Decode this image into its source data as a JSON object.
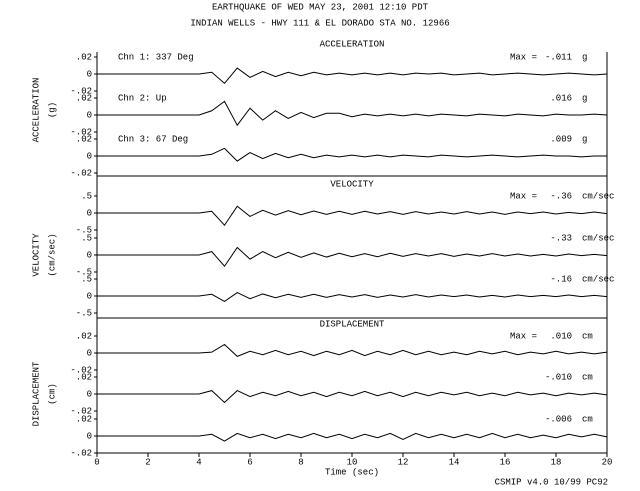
{
  "chart_data": {
    "type": "line",
    "title": "EARTHQUAKE OF WED MAY 23, 2001  12:10 PDT",
    "subtitle": "INDIAN WELLS - HWY 111 & EL DORADO    STA NO. 12966",
    "footer": "CSMIP v4.0 10/99  PC92",
    "xlabel": "Time (sec)",
    "xlim": [
      0,
      20
    ],
    "xticks": [
      0,
      2,
      4,
      6,
      8,
      10,
      12,
      14,
      16,
      18,
      20
    ],
    "max_prefix": "Max =",
    "color": "#000000",
    "x": [
      0,
      0.5,
      1,
      1.5,
      2,
      2.5,
      3,
      3.5,
      4,
      4.5,
      5,
      5.5,
      6,
      6.5,
      7,
      7.5,
      8,
      8.5,
      9,
      9.5,
      10,
      10.5,
      11,
      11.5,
      12,
      12.5,
      13,
      13.5,
      14,
      14.5,
      15,
      15.5,
      16,
      16.5,
      17,
      17.5,
      18,
      18.5,
      19,
      19.5,
      20
    ],
    "panels": [
      {
        "title": "ACCELERATION",
        "ylabel": "ACCELERATION",
        "yunit": "(g)",
        "ylim": [
          -0.02,
          0.02
        ],
        "yticks": [
          {
            "value": 0.02,
            "label": ".02"
          },
          0,
          {
            "value": -0.02,
            "label": "-.02"
          }
        ],
        "series": [
          {
            "name": "Chn 1: 337 Deg",
            "max": -0.011,
            "max_label": "-.011",
            "unit": "g",
            "values": [
              0,
              0,
              0,
              0,
              0,
              0,
              0,
              0,
              0,
              0.002,
              -0.011,
              0.007,
              -0.004,
              0.003,
              -0.003,
              0.002,
              -0.002,
              0.002,
              -0.001,
              0.001,
              -0.001,
              0.001,
              -0.001,
              0.001,
              -0.001,
              0.001,
              0,
              0.001,
              -0.001,
              0,
              0.001,
              -0.001,
              0,
              0.001,
              0,
              -0.001,
              0,
              0.001,
              0,
              -0.001,
              0
            ]
          },
          {
            "name": "Chn 2: Up",
            "max": 0.016,
            "max_label": ".016",
            "unit": "g",
            "values": [
              0,
              0,
              0,
              0,
              0,
              0,
              0,
              0,
              0,
              0.005,
              0.016,
              -0.012,
              0.008,
              -0.006,
              0.005,
              -0.004,
              0.003,
              -0.003,
              0.002,
              0.002,
              -0.002,
              0.001,
              -0.001,
              0.001,
              -0.001,
              0.001,
              -0.001,
              0.001,
              0,
              -0.001,
              0.001,
              0,
              -0.001,
              0.001,
              0,
              -0.001,
              0.001,
              0,
              0,
              0.001,
              0
            ]
          },
          {
            "name": "Chn 3: 67 Deg",
            "max": 0.009,
            "max_label": ".009",
            "unit": "g",
            "values": [
              0,
              0,
              0,
              0,
              0,
              0,
              0,
              0,
              0,
              0.002,
              0.009,
              -0.006,
              0.004,
              -0.003,
              0.003,
              -0.002,
              0.002,
              -0.002,
              0.001,
              -0.001,
              0.001,
              -0.001,
              0.001,
              -0.001,
              0.001,
              0,
              -0.001,
              0.001,
              0,
              -0.001,
              0,
              0.001,
              0,
              -0.001,
              0,
              0.001,
              0,
              0,
              -0.001,
              0,
              0
            ]
          }
        ]
      },
      {
        "title": "VELOCITY",
        "ylabel": "VELOCITY",
        "yunit": "(cm/sec)",
        "ylim": [
          -0.5,
          0.5
        ],
        "yticks": [
          {
            "value": 0.5,
            "label": ".5"
          },
          0,
          {
            "value": -0.5,
            "label": "-.5"
          }
        ],
        "series": [
          {
            "max": -0.36,
            "max_label": "-.36",
            "unit": "cm/sec",
            "values": [
              0,
              0,
              0,
              0,
              0,
              0,
              0,
              0,
              0,
              0.05,
              -0.36,
              0.2,
              -0.1,
              0.08,
              -0.06,
              0.07,
              -0.05,
              0.06,
              -0.04,
              0.05,
              -0.04,
              0.05,
              -0.03,
              0.04,
              -0.04,
              0.04,
              -0.03,
              0.03,
              -0.03,
              0.04,
              -0.03,
              0.03,
              -0.04,
              0.03,
              -0.02,
              0.03,
              -0.03,
              0.02,
              -0.02,
              0.03,
              -0.02
            ]
          },
          {
            "max": -0.33,
            "max_label": "-.33",
            "unit": "cm/sec",
            "values": [
              0,
              0,
              0,
              0,
              0,
              0,
              0,
              0,
              0,
              0.1,
              -0.33,
              0.22,
              -0.12,
              0.1,
              -0.08,
              0.08,
              -0.07,
              0.06,
              -0.06,
              0.05,
              -0.05,
              0.04,
              -0.05,
              0.05,
              -0.04,
              0.04,
              -0.03,
              0.04,
              -0.04,
              0.03,
              -0.03,
              0.04,
              -0.03,
              0.03,
              -0.03,
              0.02,
              -0.03,
              0.03,
              -0.02,
              0.02,
              -0.02
            ]
          },
          {
            "max": -0.16,
            "max_label": "-.16",
            "unit": "cm/sec",
            "values": [
              0,
              0,
              0,
              0,
              0,
              0,
              0,
              0,
              0,
              0.05,
              -0.16,
              0.1,
              -0.08,
              0.06,
              -0.05,
              0.05,
              -0.04,
              0.05,
              -0.04,
              0.04,
              -0.03,
              0.04,
              -0.04,
              0.03,
              -0.03,
              0.04,
              -0.03,
              0.03,
              -0.02,
              0.03,
              -0.03,
              0.02,
              -0.03,
              0.03,
              -0.02,
              0.02,
              -0.02,
              0.03,
              -0.02,
              0.02,
              -0.02
            ]
          }
        ]
      },
      {
        "title": "DISPLACEMENT",
        "ylabel": "DISPLACEMENT",
        "yunit": "(cm)",
        "ylim": [
          -0.02,
          0.02
        ],
        "yticks": [
          {
            "value": 0.02,
            "label": ".02"
          },
          0,
          {
            "value": -0.02,
            "label": "-.02"
          }
        ],
        "series": [
          {
            "max": 0.01,
            "max_label": ".010",
            "unit": "cm",
            "values": [
              0,
              0,
              0,
              0,
              0,
              0,
              0,
              0,
              0,
              0.001,
              0.01,
              -0.004,
              0.002,
              -0.002,
              0.003,
              -0.002,
              0.002,
              -0.003,
              0.002,
              -0.002,
              0.003,
              -0.003,
              0.002,
              -0.002,
              0.003,
              -0.002,
              0.002,
              -0.002,
              0.001,
              -0.002,
              0.002,
              -0.001,
              0.002,
              -0.002,
              0.001,
              -0.001,
              0.002,
              -0.001,
              0.001,
              -0.001,
              0.001
            ]
          },
          {
            "max": -0.01,
            "max_label": "-.010",
            "unit": "cm",
            "values": [
              0,
              0,
              0,
              0,
              0,
              0,
              0,
              0,
              0,
              0.004,
              -0.01,
              0.004,
              -0.003,
              0.002,
              -0.002,
              0.003,
              -0.002,
              0.002,
              -0.003,
              0.002,
              -0.002,
              0.003,
              -0.002,
              0.002,
              -0.003,
              0.002,
              -0.002,
              0.002,
              -0.001,
              0.002,
              -0.002,
              0.001,
              -0.002,
              0.002,
              -0.001,
              0.001,
              -0.002,
              0.001,
              -0.001,
              0.001,
              -0.001
            ]
          },
          {
            "max": -0.006,
            "max_label": "-.006",
            "unit": "cm",
            "values": [
              0,
              0,
              0,
              0,
              0,
              0,
              0,
              0,
              0,
              0.002,
              -0.006,
              0.003,
              -0.002,
              0.002,
              -0.003,
              0.002,
              -0.002,
              0.003,
              -0.002,
              0.002,
              -0.003,
              0.002,
              -0.002,
              0.003,
              -0.004,
              0.003,
              -0.002,
              0.002,
              -0.002,
              0.002,
              -0.002,
              0.003,
              -0.002,
              0.002,
              -0.002,
              0.001,
              -0.002,
              0.002,
              -0.001,
              0.002,
              -0.001
            ]
          }
        ]
      }
    ]
  }
}
